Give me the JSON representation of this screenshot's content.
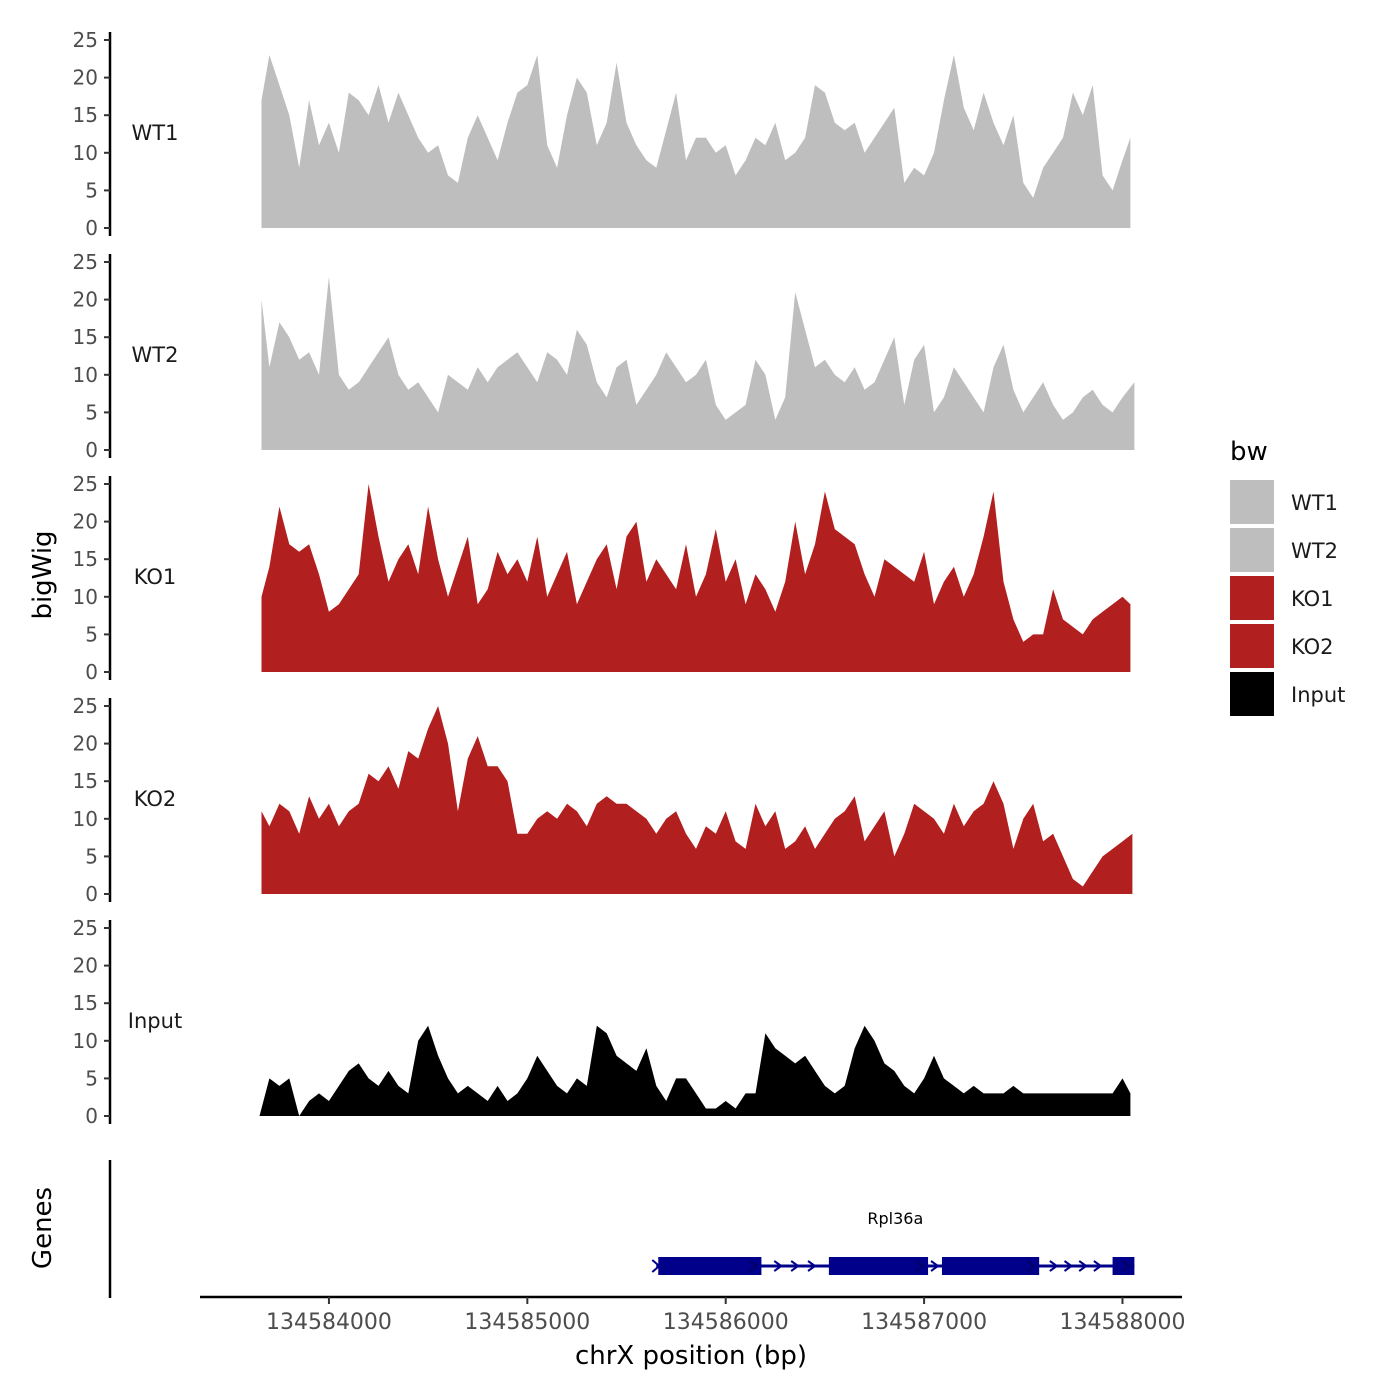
{
  "chart_data": {
    "type": "area",
    "xlabel": "chrX position (bp)",
    "ylabel": "bigWig",
    "genes_label": "Genes",
    "legend_title": "bw",
    "x_ticks": [
      134584000,
      134585000,
      134586000,
      134587000,
      134588000
    ],
    "x_tick_labels": [
      "134584000",
      "134585000",
      "134586000",
      "134587000",
      "134588000"
    ],
    "xlim": [
      134583350,
      134588300
    ],
    "y_ticks": [
      0,
      5,
      10,
      15,
      20,
      25
    ],
    "y_tick_labels": [
      "0",
      "5",
      "10",
      "15",
      "20",
      "25"
    ],
    "ylim": [
      0,
      25
    ],
    "tracks": [
      {
        "name": "WT1",
        "color": "#BEBEBE",
        "x": [
          134583660,
          134583700,
          134583750,
          134583800,
          134583850,
          134583900,
          134583950,
          134584000,
          134584050,
          134584100,
          134584150,
          134584200,
          134584250,
          134584300,
          134584350,
          134584400,
          134584450,
          134584500,
          134584550,
          134584600,
          134584650,
          134584700,
          134584750,
          134584800,
          134584850,
          134584900,
          134584950,
          134585000,
          134585050,
          134585100,
          134585150,
          134585200,
          134585250,
          134585300,
          134585350,
          134585400,
          134585450,
          134585500,
          134585550,
          134585600,
          134585650,
          134585700,
          134585750,
          134585800,
          134585850,
          134585900,
          134585950,
          134586000,
          134586050,
          134586100,
          134586150,
          134586200,
          134586250,
          134586300,
          134586350,
          134586400,
          134586450,
          134586500,
          134586550,
          134586600,
          134586650,
          134586700,
          134586750,
          134586800,
          134586850,
          134586900,
          134586950,
          134587000,
          134587050,
          134587100,
          134587150,
          134587200,
          134587250,
          134587300,
          134587350,
          134587400,
          134587450,
          134587500,
          134587550,
          134587600,
          134587650,
          134587700,
          134587750,
          134587800,
          134587850,
          134587900,
          134587950,
          134588000,
          134588040
        ],
        "y": [
          17,
          23,
          19,
          15,
          8,
          17,
          11,
          14,
          10,
          18,
          17,
          15,
          19,
          14,
          18,
          15,
          12,
          10,
          11,
          7,
          6,
          12,
          15,
          12,
          9,
          14,
          18,
          19,
          23,
          11,
          8,
          15,
          20,
          18,
          11,
          14,
          22,
          14,
          11,
          9,
          8,
          13,
          18,
          9,
          12,
          12,
          10,
          11,
          7,
          9,
          12,
          11,
          14,
          9,
          10,
          12,
          19,
          18,
          14,
          13,
          14,
          10,
          12,
          14,
          16,
          6,
          8,
          7,
          10,
          17,
          23,
          16,
          13,
          18,
          14,
          11,
          15,
          6,
          4,
          8,
          10,
          12,
          18,
          15,
          19,
          7,
          5,
          9,
          12
        ],
        "pos": "right"
      },
      {
        "name": "WT2",
        "color": "#BEBEBE",
        "x": [
          134583660,
          134583700,
          134583750,
          134583800,
          134583850,
          134583900,
          134583950,
          134584000,
          134584050,
          134584100,
          134584150,
          134584200,
          134584250,
          134584300,
          134584350,
          134584400,
          134584450,
          134584500,
          134584550,
          134584600,
          134584650,
          134584700,
          134584750,
          134584800,
          134584850,
          134584900,
          134584950,
          134585000,
          134585050,
          134585100,
          134585150,
          134585200,
          134585250,
          134585300,
          134585350,
          134585400,
          134585450,
          134585500,
          134585550,
          134585600,
          134585650,
          134585700,
          134585750,
          134585800,
          134585850,
          134585900,
          134585950,
          134586000,
          134586050,
          134586100,
          134586150,
          134586200,
          134586250,
          134586300,
          134586350,
          134586400,
          134586450,
          134586500,
          134586550,
          134586600,
          134586650,
          134586700,
          134586750,
          134586800,
          134586850,
          134586900,
          134586950,
          134587000,
          134587050,
          134587100,
          134587150,
          134587200,
          134587250,
          134587300,
          134587350,
          134587400,
          134587450,
          134587500,
          134587550,
          134587600,
          134587650,
          134587700,
          134587750,
          134587800,
          134587850,
          134587900,
          134587950,
          134588000,
          134588060
        ],
        "y": [
          20,
          11,
          17,
          15,
          12,
          13,
          10,
          23,
          10,
          8,
          9,
          11,
          13,
          15,
          10,
          8,
          9,
          7,
          5,
          10,
          9,
          8,
          11,
          9,
          11,
          12,
          13,
          11,
          9,
          13,
          12,
          10,
          16,
          14,
          9,
          7,
          11,
          12,
          6,
          8,
          10,
          13,
          11,
          9,
          10,
          12,
          6,
          4,
          5,
          6,
          12,
          10,
          4,
          7,
          21,
          16,
          11,
          12,
          10,
          9,
          11,
          8,
          9,
          12,
          15,
          6,
          12,
          14,
          5,
          7,
          11,
          9,
          7,
          5,
          11,
          14,
          8,
          5,
          7,
          9,
          6,
          4,
          5,
          7,
          8,
          6,
          5,
          7,
          9
        ],
        "pos": "right"
      },
      {
        "name": "KO1",
        "color": "#B21F1F",
        "x": [
          134583660,
          134583700,
          134583750,
          134583800,
          134583850,
          134583900,
          134583950,
          134584000,
          134584050,
          134584100,
          134584150,
          134584200,
          134584250,
          134584300,
          134584350,
          134584400,
          134584450,
          134584500,
          134584550,
          134584600,
          134584650,
          134584700,
          134584750,
          134584800,
          134584850,
          134584900,
          134584950,
          134585000,
          134585050,
          134585100,
          134585150,
          134585200,
          134585250,
          134585300,
          134585350,
          134585400,
          134585450,
          134585500,
          134585550,
          134585600,
          134585650,
          134585700,
          134585750,
          134585800,
          134585850,
          134585900,
          134585950,
          134586000,
          134586050,
          134586100,
          134586150,
          134586200,
          134586250,
          134586300,
          134586350,
          134586400,
          134586450,
          134586500,
          134586550,
          134586600,
          134586650,
          134586700,
          134586750,
          134586800,
          134586850,
          134586900,
          134586950,
          134587000,
          134587050,
          134587100,
          134587150,
          134587200,
          134587250,
          134587300,
          134587350,
          134587400,
          134587450,
          134587500,
          134587550,
          134587600,
          134587650,
          134587700,
          134587750,
          134587800,
          134587850,
          134587900,
          134587950,
          134588000,
          134588040
        ],
        "y": [
          10,
          14,
          22,
          17,
          16,
          17,
          13,
          8,
          9,
          11,
          13,
          25,
          18,
          12,
          15,
          17,
          13,
          22,
          15,
          10,
          14,
          18,
          9,
          11,
          16,
          13,
          15,
          12,
          18,
          10,
          13,
          16,
          9,
          12,
          15,
          17,
          11,
          18,
          20,
          12,
          15,
          13,
          11,
          17,
          10,
          13,
          19,
          12,
          15,
          9,
          13,
          11,
          8,
          12,
          20,
          13,
          17,
          24,
          19,
          18,
          17,
          13,
          10,
          15,
          14,
          13,
          12,
          16,
          9,
          12,
          14,
          10,
          13,
          18,
          24,
          12,
          7,
          4,
          5,
          5,
          11,
          7,
          6,
          5,
          7,
          8,
          9,
          10,
          9
        ],
        "pos": "right"
      },
      {
        "name": "KO2",
        "color": "#B21F1F",
        "x": [
          134583660,
          134583700,
          134583750,
          134583800,
          134583850,
          134583900,
          134583950,
          134584000,
          134584050,
          134584100,
          134584150,
          134584200,
          134584250,
          134584300,
          134584350,
          134584400,
          134584450,
          134584500,
          134584550,
          134584600,
          134584650,
          134584700,
          134584750,
          134584800,
          134584850,
          134584900,
          134584950,
          134585000,
          134585050,
          134585100,
          134585150,
          134585200,
          134585250,
          134585300,
          134585350,
          134585400,
          134585450,
          134585500,
          134585550,
          134585600,
          134585650,
          134585700,
          134585750,
          134585800,
          134585850,
          134585900,
          134585950,
          134586000,
          134586050,
          134586100,
          134586150,
          134586200,
          134586250,
          134586300,
          134586350,
          134586400,
          134586450,
          134586500,
          134586550,
          134586600,
          134586650,
          134586700,
          134586750,
          134586800,
          134586850,
          134586900,
          134586950,
          134587000,
          134587050,
          134587100,
          134587150,
          134587200,
          134587250,
          134587300,
          134587350,
          134587400,
          134587450,
          134587500,
          134587550,
          134587600,
          134587650,
          134587700,
          134587750,
          134587800,
          134587850,
          134587900,
          134587950,
          134588000,
          134588050
        ],
        "y": [
          11,
          9,
          12,
          11,
          8,
          13,
          10,
          12,
          9,
          11,
          12,
          16,
          15,
          17,
          14,
          19,
          18,
          22,
          25,
          20,
          11,
          18,
          21,
          17,
          17,
          15,
          8,
          8,
          10,
          11,
          10,
          12,
          11,
          9,
          12,
          13,
          12,
          12,
          11,
          10,
          8,
          10,
          11,
          8,
          6,
          9,
          8,
          11,
          7,
          6,
          12,
          9,
          11,
          6,
          7,
          9,
          6,
          8,
          10,
          11,
          13,
          7,
          9,
          11,
          5,
          8,
          12,
          11,
          10,
          8,
          12,
          9,
          11,
          12,
          15,
          12,
          6,
          10,
          12,
          7,
          8,
          5,
          2,
          1,
          3,
          5,
          6,
          7,
          8
        ],
        "pos": "right"
      },
      {
        "name": "Input",
        "color": "#000000",
        "x": [
          134583650,
          134583700,
          134583750,
          134583800,
          134583850,
          134583900,
          134583950,
          134584000,
          134584050,
          134584100,
          134584150,
          134584200,
          134584250,
          134584300,
          134584350,
          134584400,
          134584450,
          134584500,
          134584550,
          134584600,
          134584650,
          134584700,
          134584750,
          134584800,
          134584850,
          134584900,
          134584950,
          134585000,
          134585050,
          134585100,
          134585150,
          134585200,
          134585250,
          134585300,
          134585350,
          134585400,
          134585450,
          134585500,
          134585550,
          134585600,
          134585650,
          134585700,
          134585750,
          134585800,
          134585850,
          134585900,
          134585950,
          134586000,
          134586050,
          134586100,
          134586150,
          134586200,
          134586250,
          134586300,
          134586350,
          134586400,
          134586450,
          134586500,
          134586550,
          134586600,
          134586650,
          134586700,
          134586750,
          134586800,
          134586850,
          134586900,
          134586950,
          134587000,
          134587050,
          134587100,
          134587150,
          134587200,
          134587250,
          134587300,
          134587350,
          134587400,
          134587450,
          134587500,
          134587550,
          134587600,
          134587650,
          134587700,
          134587750,
          134587800,
          134587850,
          134587900,
          134587950,
          134588000,
          134588040
        ],
        "y": [
          0,
          5,
          4,
          5,
          0,
          2,
          3,
          2,
          4,
          6,
          7,
          5,
          4,
          6,
          4,
          3,
          10,
          12,
          8,
          5,
          3,
          4,
          3,
          2,
          4,
          2,
          3,
          5,
          8,
          6,
          4,
          3,
          5,
          4,
          12,
          11,
          8,
          7,
          6,
          9,
          4,
          2,
          5,
          5,
          3,
          1,
          1,
          2,
          1,
          3,
          3,
          11,
          9,
          8,
          7,
          8,
          6,
          4,
          3,
          4,
          9,
          12,
          10,
          7,
          6,
          4,
          3,
          5,
          8,
          5,
          4,
          3,
          4,
          3,
          3,
          3,
          4,
          3,
          3,
          3,
          3,
          3,
          3,
          3,
          3,
          3,
          3,
          5,
          3
        ],
        "pos": "right"
      }
    ],
    "legend": [
      {
        "label": "WT1",
        "color": "#BEBEBE"
      },
      {
        "label": "WT2",
        "color": "#BEBEBE"
      },
      {
        "label": "KO1",
        "color": "#B21F1F"
      },
      {
        "label": "KO2",
        "color": "#B21F1F"
      },
      {
        "label": "Input",
        "color": "#000000"
      }
    ],
    "gene": {
      "name": "Rpl36a",
      "color": "#00008B",
      "start": 134585650,
      "end": 134588060,
      "strand": "+",
      "exons": [
        [
          134585660,
          134586180
        ],
        [
          134586520,
          134587020
        ],
        [
          134587090,
          134587580
        ],
        [
          134587950,
          134588060
        ]
      ]
    }
  }
}
